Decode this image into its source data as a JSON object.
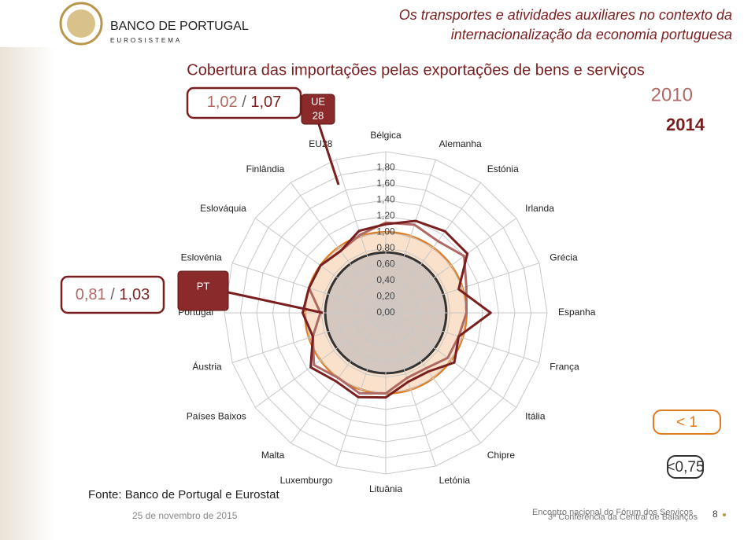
{
  "header": {
    "bank_name": "BANCO DE PORTUGAL",
    "bank_sub": "EUROSISTEMA",
    "title_lines": [
      "Os transportes e atividades auxiliares no contexto da",
      "internacionalização da economia portuguesa"
    ]
  },
  "chart_data": {
    "type": "radar",
    "title": "Cobertura das importações pelas exportações de bens e serviços",
    "categories": [
      "Bélgica",
      "Alemanha",
      "Estónia",
      "Irlanda",
      "Grécia",
      "Espanha",
      "França",
      "Itália",
      "Chipre",
      "Letónia",
      "Lituânia",
      "Luxemburgo",
      "Malta",
      "Países Baixos",
      "Áustria",
      "Portugal",
      "Eslovénia",
      "Eslováquia",
      "Finlândia",
      "EU28"
    ],
    "series": [
      {
        "name": "2010",
        "color": "#b06a66",
        "values": [
          1.12,
          1.15,
          1.1,
          1.2,
          1.05,
          1.0,
          0.95,
          0.95,
          0.85,
          0.85,
          1.0,
          1.05,
          1.0,
          1.1,
          0.95,
          0.81,
          1.0,
          1.0,
          0.95,
          1.02
        ]
      },
      {
        "name": "2014",
        "color": "#7a1f1f",
        "values": [
          1.1,
          1.2,
          1.25,
          1.25,
          0.95,
          1.3,
          0.95,
          1.05,
          0.9,
          0.9,
          1.05,
          1.1,
          1.05,
          1.15,
          0.95,
          1.03,
          1.0,
          1.0,
          0.95,
          1.07
        ]
      }
    ],
    "rlim": [
      0,
      2.0
    ],
    "rticks": [
      {
        "value": 0,
        "label": "0,00"
      },
      {
        "value": 0.2,
        "label": "0,20"
      },
      {
        "value": 0.4,
        "label": "0,40"
      },
      {
        "value": 0.6,
        "label": "0,60"
      },
      {
        "value": 0.8,
        "label": "0,80"
      },
      {
        "value": 1.0,
        "label": "1,00"
      },
      {
        "value": 1.2,
        "label": "1,20"
      },
      {
        "value": 1.4,
        "label": "1,40"
      },
      {
        "value": 1.6,
        "label": "1,60"
      },
      {
        "value": 1.8,
        "label": "1,80"
      }
    ],
    "grid": true,
    "reference_circles": [
      {
        "value": 1,
        "label": "< 1",
        "color": "#e07b20",
        "fill": "#f8d9bf"
      },
      {
        "value": 0.75,
        "label": "<0,75",
        "color": "#333333",
        "fill": "#c9c0bb"
      }
    ],
    "callouts": [
      {
        "tag": [
          "UE",
          "28"
        ],
        "text_2010": "1,02",
        "text_2014": "1,07"
      },
      {
        "tag": [
          "PT"
        ],
        "text_2010": "0,81",
        "text_2014": "1,03"
      }
    ],
    "separator": "/",
    "source": "Fonte: Banco de Portugal e Eurostat"
  },
  "footer": {
    "date": "25 de novembro de 2015",
    "event_1": "Encontro nacional do Fórum dos Serviços",
    "event_2": "3ª Conferência da Central de Balanços",
    "page": "8"
  }
}
